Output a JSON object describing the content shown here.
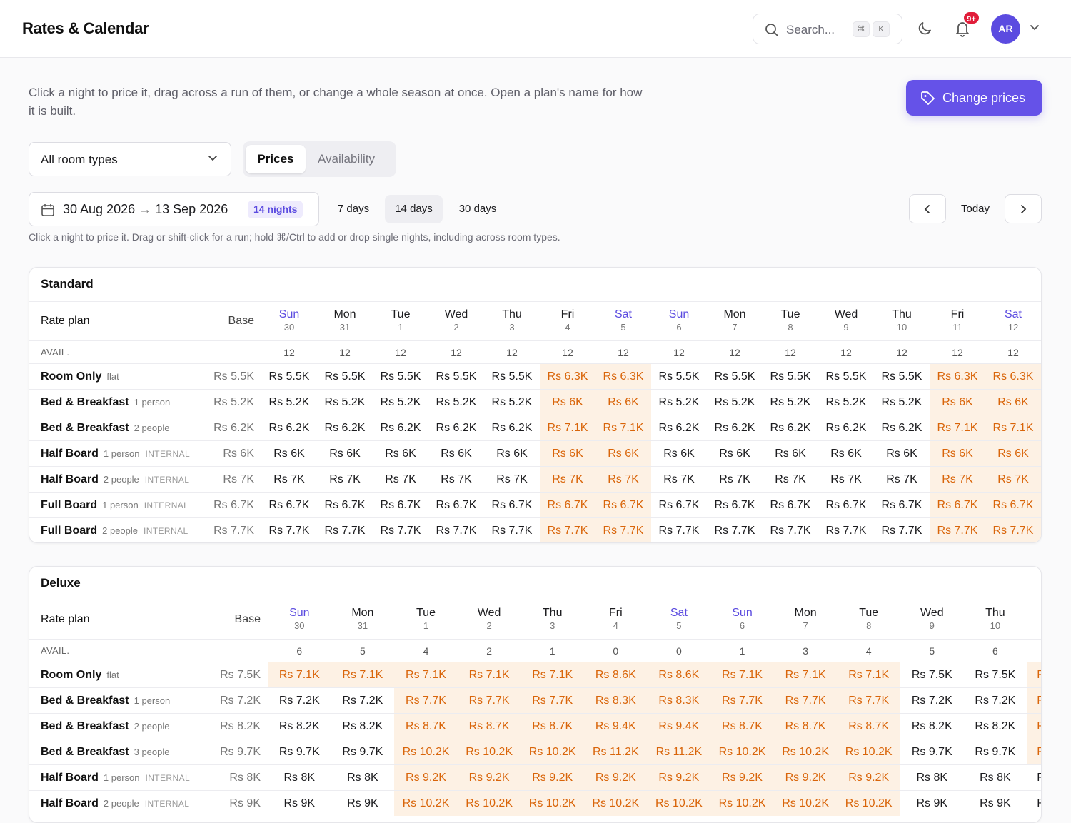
{
  "header": {
    "title": "Rates & Calendar",
    "search_placeholder": "Search...",
    "kbd1": "⌘",
    "kbd2": "K",
    "badge": "9+",
    "avatar": "AR"
  },
  "intro": "Click a night to price it, drag across a run of them, or change a whole season at once. Open a plan's name for how it is built.",
  "change_prices_label": "Change prices",
  "room_select": "All room types",
  "view_tabs": {
    "active": "Prices",
    "inactive": "Availability"
  },
  "date_range": {
    "from": "30 Aug 2026",
    "arrow": "→",
    "to": "13 Sep 2026",
    "nights": "14 nights"
  },
  "duration_buttons": [
    "7 days",
    "14 days",
    "30 days"
  ],
  "today_label": "Today",
  "hint": "Click a night to price it. Drag or shift-click for a run; hold ⌘/Ctrl to add or drop single nights, including across room types.",
  "labels": {
    "rate_plan": "Rate plan",
    "base": "Base",
    "avail": "AVAIL."
  },
  "colors": {
    "accent": "#5b4be0",
    "highlight_bg": "#fdf1e4",
    "highlight_text": "#d9650a"
  },
  "standard": {
    "name": "Standard",
    "days": [
      [
        "Sun",
        "30"
      ],
      [
        "Mon",
        "31"
      ],
      [
        "Tue",
        "1"
      ],
      [
        "Wed",
        "2"
      ],
      [
        "Thu",
        "3"
      ],
      [
        "Fri",
        "4"
      ],
      [
        "Sat",
        "5"
      ],
      [
        "Sun",
        "6"
      ],
      [
        "Mon",
        "7"
      ],
      [
        "Tue",
        "8"
      ],
      [
        "Wed",
        "9"
      ],
      [
        "Thu",
        "10"
      ],
      [
        "Fri",
        "11"
      ],
      [
        "Sat",
        "12"
      ]
    ],
    "avail": [
      "12",
      "12",
      "12",
      "12",
      "12",
      "12",
      "12",
      "12",
      "12",
      "12",
      "12",
      "12",
      "12",
      "12"
    ],
    "plans": [
      {
        "name": "Room Only",
        "sub": "flat",
        "tag": "",
        "base": "Rs 5.5K",
        "prices": [
          "Rs 5.5K",
          "Rs 5.5K",
          "Rs 5.5K",
          "Rs 5.5K",
          "Rs 5.5K",
          "Rs 6.3K",
          "Rs 6.3K",
          "Rs 5.5K",
          "Rs 5.5K",
          "Rs 5.5K",
          "Rs 5.5K",
          "Rs 5.5K",
          "Rs 6.3K",
          "Rs 6.3K"
        ]
      },
      {
        "name": "Bed & Breakfast",
        "sub": "1 person",
        "tag": "",
        "base": "Rs 5.2K",
        "prices": [
          "Rs 5.2K",
          "Rs 5.2K",
          "Rs 5.2K",
          "Rs 5.2K",
          "Rs 5.2K",
          "Rs 6K",
          "Rs 6K",
          "Rs 5.2K",
          "Rs 5.2K",
          "Rs 5.2K",
          "Rs 5.2K",
          "Rs 5.2K",
          "Rs 6K",
          "Rs 6K"
        ]
      },
      {
        "name": "Bed & Breakfast",
        "sub": "2 people",
        "tag": "",
        "base": "Rs 6.2K",
        "prices": [
          "Rs 6.2K",
          "Rs 6.2K",
          "Rs 6.2K",
          "Rs 6.2K",
          "Rs 6.2K",
          "Rs 7.1K",
          "Rs 7.1K",
          "Rs 6.2K",
          "Rs 6.2K",
          "Rs 6.2K",
          "Rs 6.2K",
          "Rs 6.2K",
          "Rs 7.1K",
          "Rs 7.1K"
        ]
      },
      {
        "name": "Half Board",
        "sub": "1 person",
        "tag": "INTERNAL",
        "base": "Rs 6K",
        "prices": [
          "Rs 6K",
          "Rs 6K",
          "Rs 6K",
          "Rs 6K",
          "Rs 6K",
          "Rs 6K",
          "Rs 6K",
          "Rs 6K",
          "Rs 6K",
          "Rs 6K",
          "Rs 6K",
          "Rs 6K",
          "Rs 6K",
          "Rs 6K"
        ]
      },
      {
        "name": "Half Board",
        "sub": "2 people",
        "tag": "INTERNAL",
        "base": "Rs 7K",
        "prices": [
          "Rs 7K",
          "Rs 7K",
          "Rs 7K",
          "Rs 7K",
          "Rs 7K",
          "Rs 7K",
          "Rs 7K",
          "Rs 7K",
          "Rs 7K",
          "Rs 7K",
          "Rs 7K",
          "Rs 7K",
          "Rs 7K",
          "Rs 7K"
        ]
      },
      {
        "name": "Full Board",
        "sub": "1 person",
        "tag": "INTERNAL",
        "base": "Rs 6.7K",
        "prices": [
          "Rs 6.7K",
          "Rs 6.7K",
          "Rs 6.7K",
          "Rs 6.7K",
          "Rs 6.7K",
          "Rs 6.7K",
          "Rs 6.7K",
          "Rs 6.7K",
          "Rs 6.7K",
          "Rs 6.7K",
          "Rs 6.7K",
          "Rs 6.7K",
          "Rs 6.7K",
          "Rs 6.7K"
        ]
      },
      {
        "name": "Full Board",
        "sub": "2 people",
        "tag": "INTERNAL",
        "base": "Rs 7.7K",
        "prices": [
          "Rs 7.7K",
          "Rs 7.7K",
          "Rs 7.7K",
          "Rs 7.7K",
          "Rs 7.7K",
          "Rs 7.7K",
          "Rs 7.7K",
          "Rs 7.7K",
          "Rs 7.7K",
          "Rs 7.7K",
          "Rs 7.7K",
          "Rs 7.7K",
          "Rs 7.7K",
          "Rs 7.7K"
        ]
      }
    ],
    "highlight_cols": [
      5,
      6,
      12,
      13
    ]
  },
  "deluxe": {
    "name": "Deluxe",
    "days": [
      [
        "Sun",
        "30"
      ],
      [
        "Mon",
        "31"
      ],
      [
        "Tue",
        "1"
      ],
      [
        "Wed",
        "2"
      ],
      [
        "Thu",
        "3"
      ],
      [
        "Fri",
        "4"
      ],
      [
        "Sat",
        "5"
      ],
      [
        "Sun",
        "6"
      ],
      [
        "Mon",
        "7"
      ],
      [
        "Tue",
        "8"
      ],
      [
        "Wed",
        "9"
      ],
      [
        "Thu",
        "10"
      ],
      [
        "",
        ""
      ]
    ],
    "avail": [
      "6",
      "5",
      "4",
      "2",
      "1",
      "0",
      "0",
      "1",
      "3",
      "4",
      "5",
      "6",
      ""
    ],
    "plans": [
      {
        "name": "Room Only",
        "sub": "flat",
        "tag": "",
        "base": "Rs 7.5K",
        "prices": [
          "Rs 7.1K",
          "Rs 7.1K",
          "Rs 7.1K",
          "Rs 7.1K",
          "Rs 7.1K",
          "Rs 8.6K",
          "Rs 8.6K",
          "Rs 7.1K",
          "Rs 7.1K",
          "Rs 7.1K",
          "Rs 7.5K",
          "Rs 7.5K",
          "Rs"
        ],
        "hi": [
          0,
          1,
          2,
          3,
          4,
          5,
          6,
          7,
          8,
          9,
          12
        ]
      },
      {
        "name": "Bed & Breakfast",
        "sub": "1 person",
        "tag": "",
        "base": "Rs 7.2K",
        "prices": [
          "Rs 7.2K",
          "Rs 7.2K",
          "Rs 7.7K",
          "Rs 7.7K",
          "Rs 7.7K",
          "Rs 8.3K",
          "Rs 8.3K",
          "Rs 7.7K",
          "Rs 7.7K",
          "Rs 7.7K",
          "Rs 7.2K",
          "Rs 7.2K",
          "Rs"
        ],
        "hi": [
          2,
          3,
          4,
          5,
          6,
          7,
          8,
          9,
          12
        ]
      },
      {
        "name": "Bed & Breakfast",
        "sub": "2 people",
        "tag": "",
        "base": "Rs 8.2K",
        "prices": [
          "Rs 8.2K",
          "Rs 8.2K",
          "Rs 8.7K",
          "Rs 8.7K",
          "Rs 8.7K",
          "Rs 9.4K",
          "Rs 9.4K",
          "Rs 8.7K",
          "Rs 8.7K",
          "Rs 8.7K",
          "Rs 8.2K",
          "Rs 8.2K",
          "Rs"
        ],
        "hi": [
          2,
          3,
          4,
          5,
          6,
          7,
          8,
          9,
          12
        ]
      },
      {
        "name": "Bed & Breakfast",
        "sub": "3 people",
        "tag": "",
        "base": "Rs 9.7K",
        "prices": [
          "Rs 9.7K",
          "Rs 9.7K",
          "Rs 10.2K",
          "Rs 10.2K",
          "Rs 10.2K",
          "Rs 11.2K",
          "Rs 11.2K",
          "Rs 10.2K",
          "Rs 10.2K",
          "Rs 10.2K",
          "Rs 9.7K",
          "Rs 9.7K",
          "Rs"
        ],
        "hi": [
          2,
          3,
          4,
          5,
          6,
          7,
          8,
          9,
          12
        ]
      },
      {
        "name": "Half Board",
        "sub": "1 person",
        "tag": "INTERNAL",
        "base": "Rs 8K",
        "prices": [
          "Rs 8K",
          "Rs 8K",
          "Rs 9.2K",
          "Rs 9.2K",
          "Rs 9.2K",
          "Rs 9.2K",
          "Rs 9.2K",
          "Rs 9.2K",
          "Rs 9.2K",
          "Rs 9.2K",
          "Rs 8K",
          "Rs 8K",
          "R"
        ],
        "hi": [
          2,
          3,
          4,
          5,
          6,
          7,
          8,
          9
        ]
      },
      {
        "name": "Half Board",
        "sub": "2 people",
        "tag": "INTERNAL",
        "base": "Rs 9K",
        "prices": [
          "Rs 9K",
          "Rs 9K",
          "Rs 10.2K",
          "Rs 10.2K",
          "Rs 10.2K",
          "Rs 10.2K",
          "Rs 10.2K",
          "Rs 10.2K",
          "Rs 10.2K",
          "Rs 10.2K",
          "Rs 9K",
          "Rs 9K",
          "R"
        ],
        "hi": [
          2,
          3,
          4,
          5,
          6,
          7,
          8,
          9
        ]
      }
    ]
  }
}
